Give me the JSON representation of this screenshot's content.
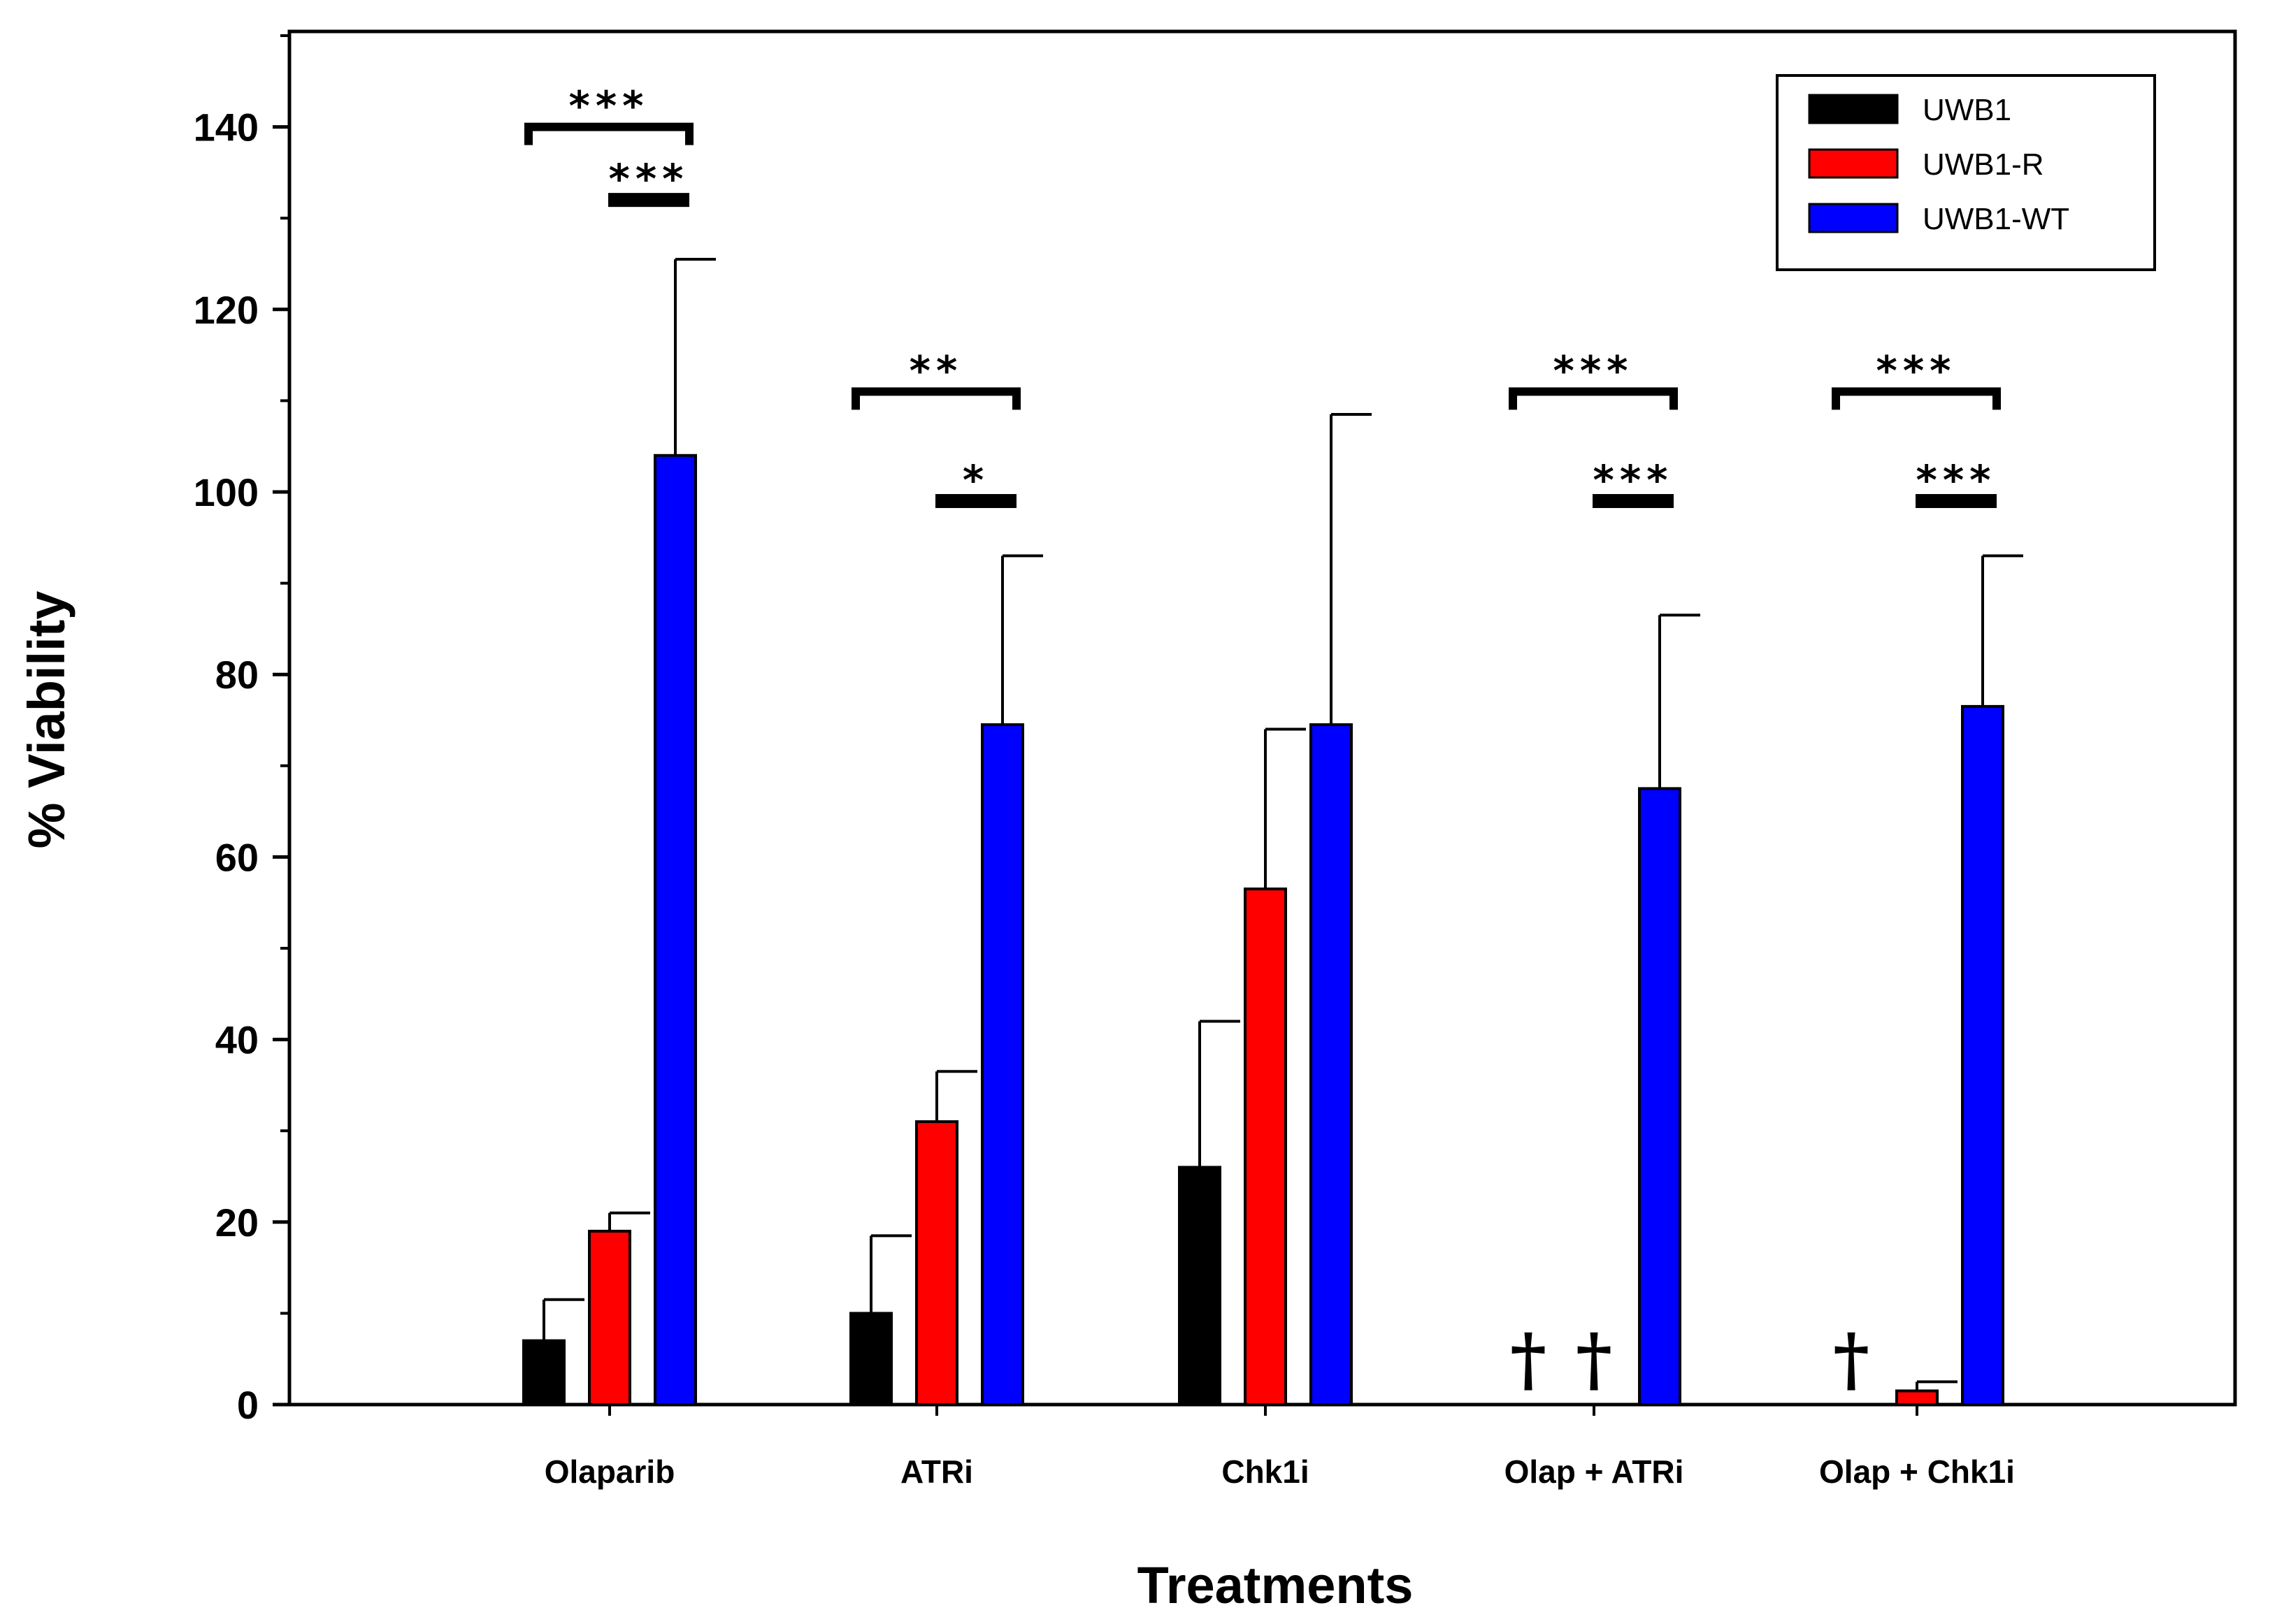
{
  "chart_data": {
    "type": "bar",
    "title": "",
    "xlabel": "Treatments",
    "ylabel": "% Viability",
    "ylim": [
      0,
      150
    ],
    "yticks": [
      0,
      20,
      40,
      60,
      80,
      100,
      120,
      140
    ],
    "categories": [
      "Olaparib",
      "ATRi",
      "Chk1i",
      "Olap + ATRi",
      "Olap + Chk1i"
    ],
    "series": [
      {
        "name": "UWB1",
        "color": "#000000",
        "values": [
          7,
          10,
          26,
          0,
          0
        ],
        "errors": [
          4.5,
          8.5,
          16,
          0,
          0
        ]
      },
      {
        "name": "UWB1-R",
        "color": "#ff0000",
        "values": [
          19,
          31,
          56.5,
          0,
          1.5
        ],
        "errors": [
          2,
          5.5,
          17.5,
          0,
          1
        ]
      },
      {
        "name": "UWB1-WT",
        "color": "#0000ff",
        "values": [
          104,
          74.5,
          74.5,
          67.5,
          76.5
        ],
        "errors": [
          21.5,
          18.5,
          34,
          19,
          16.5
        ]
      }
    ],
    "legend_position": "top-right",
    "significance": [
      {
        "category": 0,
        "from": "UWB1",
        "to": "UWB1-WT",
        "label": "***",
        "at": 140,
        "style": "bracket"
      },
      {
        "category": 0,
        "from": "UWB1-R",
        "to": "UWB1-WT",
        "label": "***",
        "at": 132,
        "style": "bar"
      },
      {
        "category": 1,
        "from": "UWB1",
        "to": "UWB1-WT",
        "label": "**",
        "at": 111,
        "style": "bracket"
      },
      {
        "category": 1,
        "from": "UWB1-R",
        "to": "UWB1-WT",
        "label": "*",
        "at": 99,
        "style": "bar"
      },
      {
        "category": 3,
        "from": "UWB1",
        "to": "UWB1-WT",
        "label": "***",
        "at": 111,
        "style": "bracket"
      },
      {
        "category": 3,
        "from": "UWB1-R",
        "to": "UWB1-WT",
        "label": "***",
        "at": 99,
        "style": "bar"
      },
      {
        "category": 4,
        "from": "UWB1",
        "to": "UWB1-WT",
        "label": "***",
        "at": 111,
        "style": "bracket"
      },
      {
        "category": 4,
        "from": "UWB1-R",
        "to": "UWB1-WT",
        "label": "***",
        "at": 99,
        "style": "bar"
      }
    ],
    "markers": [
      {
        "category": 3,
        "series": "UWB1",
        "label": "†"
      },
      {
        "category": 3,
        "series": "UWB1-R",
        "label": "†"
      },
      {
        "category": 4,
        "series": "UWB1",
        "label": "†"
      }
    ]
  }
}
